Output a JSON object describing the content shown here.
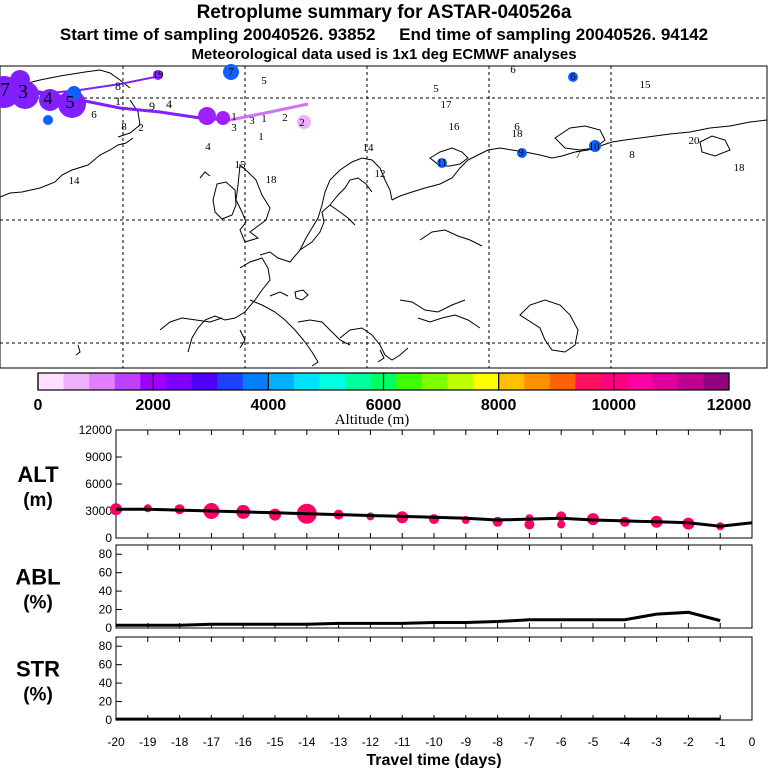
{
  "header": {
    "title": "Retroplume summary for ASTAR-040526a",
    "subtitle": "Start time of sampling 20040526. 93852     End time of sampling 20040526. 94142",
    "met_note": "Meteorological data used is 1x1 deg ECMWF analyses"
  },
  "colorbar": {
    "label": "Altitude (m)",
    "ticks": [
      "0",
      "2000",
      "4000",
      "6000",
      "8000",
      "10000",
      "12000"
    ],
    "colors": [
      "#ffe0ff",
      "#f0b0ff",
      "#e080ff",
      "#c040ff",
      "#a000ff",
      "#8000ff",
      "#5000ff",
      "#2040ff",
      "#0080ff",
      "#00b0ff",
      "#00e0ff",
      "#00ffe0",
      "#00ffa0",
      "#00ff60",
      "#40ff00",
      "#80ff00",
      "#c0ff00",
      "#ffff00",
      "#ffc000",
      "#ff9000",
      "#ff6000",
      "#ff1060",
      "#ff0080",
      "#ff00a0",
      "#e000a0",
      "#c00090",
      "#900080"
    ]
  },
  "map": {
    "plume_numbers": [
      {
        "n": "7",
        "c": "#8040ff"
      },
      {
        "n": "3",
        "c": "#8040ff"
      },
      {
        "n": "4",
        "c": "#8040ff"
      },
      {
        "n": "5",
        "c": "#8040ff"
      },
      {
        "n": "1",
        "c": "#8040ff"
      },
      {
        "n": "9",
        "c": "#8040ff"
      },
      {
        "n": "4",
        "c": "#8040ff"
      },
      {
        "n": "8",
        "c": "#8040ff"
      },
      {
        "n": "6",
        "c": "#8040ff"
      },
      {
        "n": "8",
        "c": "#8040ff"
      },
      {
        "n": "2",
        "c": "#8040ff"
      },
      {
        "n": "1",
        "c": "#8040ff"
      },
      {
        "n": "3",
        "c": "#8040ff"
      },
      {
        "n": "1",
        "c": "#8040ff"
      },
      {
        "n": "1",
        "c": "#8040ff"
      },
      {
        "n": "2",
        "c": "#8040ff"
      },
      {
        "n": "3",
        "c": "#8040ff"
      },
      {
        "n": "2",
        "c": "#8040ff"
      },
      {
        "n": "4",
        "c": "#8040ff"
      },
      {
        "n": "14",
        "c": "#8040ff"
      },
      {
        "n": "15",
        "c": "#8040ff"
      },
      {
        "n": "18",
        "c": "#8040ff"
      },
      {
        "n": "5",
        "c": "#8040ff"
      },
      {
        "n": "5",
        "c": "#8040ff"
      },
      {
        "n": "17",
        "c": "#8040ff"
      },
      {
        "n": "16",
        "c": "#8040ff"
      },
      {
        "n": "14",
        "c": "#8040ff"
      },
      {
        "n": "12",
        "c": "#8040ff"
      },
      {
        "n": "11",
        "c": "#8040ff"
      },
      {
        "n": "6",
        "c": "#8040ff"
      },
      {
        "n": "18",
        "c": "#8040ff"
      },
      {
        "n": "19",
        "c": "#8040ff"
      },
      {
        "n": "9",
        "c": "#8040ff"
      },
      {
        "n": "7",
        "c": "#8040ff"
      },
      {
        "n": "8",
        "c": "#8040ff"
      },
      {
        "n": "20",
        "c": "#8040ff"
      },
      {
        "n": "18",
        "c": "#8040ff"
      },
      {
        "n": "6",
        "c": "#8040ff"
      },
      {
        "n": "6",
        "c": "#8040ff"
      },
      {
        "n": "15",
        "c": "#8040ff"
      },
      {
        "n": "10",
        "c": "#8040ff"
      },
      {
        "n": "7",
        "c": "#8040ff"
      }
    ]
  },
  "chart_data": [
    {
      "type": "scatter",
      "panel": "ALT",
      "ylabel": "ALT",
      "yunit": "(m)",
      "ylim": [
        0,
        12000
      ],
      "yticks": [
        "0",
        "3000",
        "6000",
        "9000",
        "12000"
      ],
      "xlim": [
        -20,
        0
      ],
      "x": [
        -20,
        -19,
        -18,
        -17,
        -16,
        -15,
        -14,
        -13,
        -12,
        -11,
        -10,
        -9,
        -8,
        -7,
        -6,
        -5,
        -4,
        -3,
        -2,
        -1,
        0
      ],
      "mean_altitude": [
        3200,
        3200,
        3100,
        3000,
        2900,
        2800,
        2700,
        2600,
        2500,
        2400,
        2300,
        2200,
        2000,
        2100,
        2200,
        2000,
        1900,
        1800,
        1700,
        1300,
        1700
      ],
      "plume_clusters": [
        {
          "x": -20,
          "y": 3200,
          "s": 6
        },
        {
          "x": -19,
          "y": 3300,
          "s": 4
        },
        {
          "x": -18,
          "y": 3200,
          "s": 5
        },
        {
          "x": -17,
          "y": 3000,
          "s": 8
        },
        {
          "x": -16,
          "y": 2900,
          "s": 7
        },
        {
          "x": -15,
          "y": 2600,
          "s": 6
        },
        {
          "x": -14,
          "y": 2700,
          "s": 10
        },
        {
          "x": -13,
          "y": 2600,
          "s": 5
        },
        {
          "x": -12,
          "y": 2400,
          "s": 4
        },
        {
          "x": -11,
          "y": 2300,
          "s": 6
        },
        {
          "x": -10,
          "y": 2100,
          "s": 5
        },
        {
          "x": -9,
          "y": 2000,
          "s": 4
        },
        {
          "x": -8,
          "y": 1800,
          "s": 5
        },
        {
          "x": -7,
          "y": 2200,
          "s": 4
        },
        {
          "x": -7,
          "y": 1500,
          "s": 5
        },
        {
          "x": -6,
          "y": 2400,
          "s": 5
        },
        {
          "x": -6,
          "y": 1500,
          "s": 4
        },
        {
          "x": -5,
          "y": 2100,
          "s": 6
        },
        {
          "x": -4,
          "y": 1800,
          "s": 5
        },
        {
          "x": -3,
          "y": 1800,
          "s": 6
        },
        {
          "x": -2,
          "y": 1600,
          "s": 6
        },
        {
          "x": -1,
          "y": 1300,
          "s": 4
        }
      ],
      "marker_color": "#ff0066"
    },
    {
      "type": "line",
      "panel": "ABL",
      "ylabel": "ABL",
      "yunit": "(%)",
      "ylim": [
        0,
        90
      ],
      "yticks": [
        "0",
        "20",
        "40",
        "60",
        "80"
      ],
      "xlim": [
        -20,
        0
      ],
      "x": [
        -20,
        -19,
        -18,
        -17,
        -16,
        -15,
        -14,
        -13,
        -12,
        -11,
        -10,
        -9,
        -8,
        -7,
        -6,
        -5,
        -4,
        -3,
        -2,
        -1
      ],
      "values": [
        3,
        3,
        3,
        4,
        4,
        4,
        4,
        5,
        5,
        5,
        6,
        6,
        7,
        9,
        9,
        9,
        9,
        15,
        17,
        8
      ]
    },
    {
      "type": "line",
      "panel": "STR",
      "ylabel": "STR",
      "yunit": "(%)",
      "ylim": [
        0,
        90
      ],
      "yticks": [
        "0",
        "20",
        "40",
        "60",
        "80"
      ],
      "xlim": [
        -20,
        0
      ],
      "x": [
        -20,
        -19,
        -18,
        -17,
        -16,
        -15,
        -14,
        -13,
        -12,
        -11,
        -10,
        -9,
        -8,
        -7,
        -6,
        -5,
        -4,
        -3,
        -2,
        -1
      ],
      "values": [
        1,
        1,
        1,
        1,
        1,
        1,
        1,
        1,
        1,
        1,
        1,
        1,
        1,
        1,
        1,
        1,
        1,
        1,
        1,
        1
      ]
    }
  ],
  "xaxis": {
    "label": "Travel time (days)",
    "ticks": [
      "-20",
      "-19",
      "-18",
      "-17",
      "-16",
      "-15",
      "-14",
      "-13",
      "-12",
      "-11",
      "-10",
      "-9",
      "-8",
      "-7",
      "-6",
      "-5",
      "-4",
      "-3",
      "-2",
      "-1",
      "0"
    ]
  }
}
